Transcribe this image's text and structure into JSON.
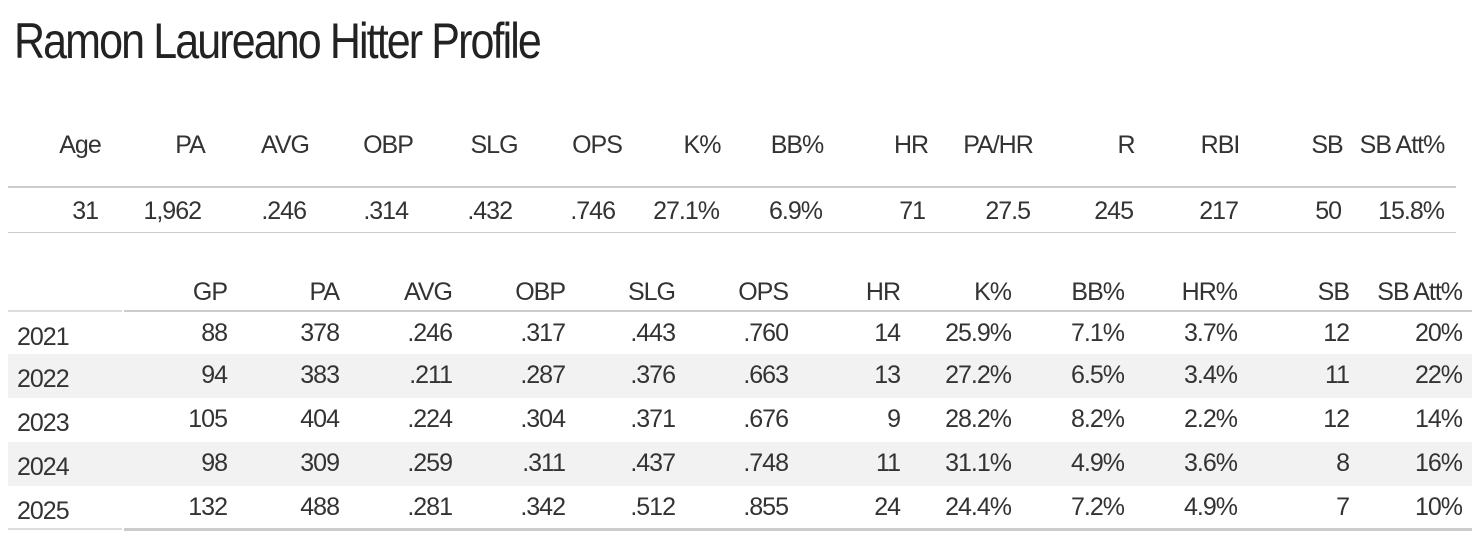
{
  "title": "Ramon Laureano Hitter Profile",
  "career": {
    "headers": [
      "Age",
      "PA",
      "AVG",
      "OBP",
      "SLG",
      "OPS",
      "K%",
      "BB%",
      "HR",
      "PA/HR",
      "R",
      "RBI",
      "SB",
      "SB Att%"
    ],
    "values": [
      "31",
      "1,962",
      ".246",
      ".314",
      ".432",
      ".746",
      "27.1%",
      "6.9%",
      "71",
      "27.5",
      "245",
      "217",
      "50",
      "15.8%"
    ]
  },
  "seasons": {
    "headers": [
      "GP",
      "PA",
      "AVG",
      "OBP",
      "SLG",
      "OPS",
      "HR",
      "K%",
      "BB%",
      "HR%",
      "SB",
      "SB Att%"
    ],
    "rows": [
      {
        "year": "2021",
        "values": [
          "88",
          "378",
          ".246",
          ".317",
          ".443",
          ".760",
          "14",
          "25.9%",
          "7.1%",
          "3.7%",
          "12",
          "20%"
        ]
      },
      {
        "year": "2022",
        "values": [
          "94",
          "383",
          ".211",
          ".287",
          ".376",
          ".663",
          "13",
          "27.2%",
          "6.5%",
          "3.4%",
          "11",
          "22%"
        ]
      },
      {
        "year": "2023",
        "values": [
          "105",
          "404",
          ".224",
          ".304",
          ".371",
          ".676",
          "9",
          "28.2%",
          "8.2%",
          "2.2%",
          "12",
          "14%"
        ]
      },
      {
        "year": "2024",
        "values": [
          "98",
          "309",
          ".259",
          ".311",
          ".437",
          ".748",
          "11",
          "31.1%",
          "4.9%",
          "3.6%",
          "8",
          "16%"
        ]
      },
      {
        "year": "2025",
        "values": [
          "132",
          "488",
          ".281",
          ".342",
          ".512",
          ".855",
          "24",
          "24.4%",
          "7.2%",
          "4.9%",
          "7",
          "10%"
        ]
      }
    ]
  },
  "colors": {
    "band": "#f2f2f2",
    "rule": "#cccccc",
    "text": "#333333",
    "title": "#222222"
  }
}
